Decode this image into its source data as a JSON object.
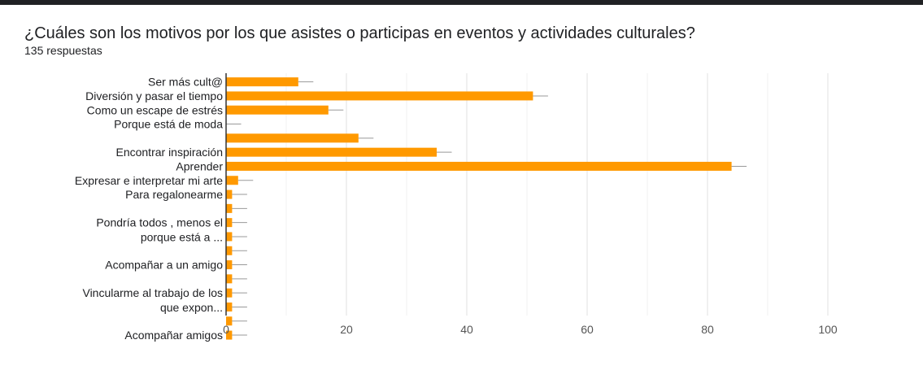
{
  "question": {
    "title": "¿Cuáles son los motivos por los que asistes o participas en eventos y actividades culturales?",
    "responses": "135 respuestas"
  },
  "colors": {
    "bar": "#FF9900",
    "grid": "#E0E0E0",
    "axis": "#333333",
    "errorbar": "#999999"
  },
  "chart_data": {
    "type": "bar",
    "orientation": "horizontal",
    "xlim": [
      0,
      100
    ],
    "xticks": [
      0,
      20,
      40,
      60,
      80,
      100
    ],
    "grid": true,
    "error_bars": true,
    "categories": [
      {
        "label": [
          "Ser más cult@"
        ],
        "value": 12
      },
      {
        "label": [
          "Diversión y pasar el tiempo"
        ],
        "value": 51
      },
      {
        "label": [
          "Como un escape de estrés"
        ],
        "value": 17
      },
      {
        "label": [
          "Porque está de moda"
        ],
        "value": 0
      },
      {
        "label": [],
        "value": 22
      },
      {
        "label": [
          "Encontrar inspiración"
        ],
        "value": 35
      },
      {
        "label": [
          "Aprender"
        ],
        "value": 84
      },
      {
        "label": [
          "Expresar e interpretar mi arte"
        ],
        "value": 2
      },
      {
        "label": [
          "Para regalonearme"
        ],
        "value": 1
      },
      {
        "label": [],
        "value": 1
      },
      {
        "label": [
          "Pondría todos , menos el",
          "porque está a ..."
        ],
        "value": 1
      },
      {
        "label": [],
        "value": 1
      },
      {
        "label": [],
        "value": 1
      },
      {
        "label": [
          "Acompañar a un amigo"
        ],
        "value": 1
      },
      {
        "label": [],
        "value": 1
      },
      {
        "label": [
          "Vincularme al trabajo de los",
          "que expon..."
        ],
        "value": 1
      },
      {
        "label": [],
        "value": 1
      },
      {
        "label": [],
        "value": 1
      },
      {
        "label": [
          "Acompañar amigos"
        ],
        "value": 1
      }
    ]
  }
}
